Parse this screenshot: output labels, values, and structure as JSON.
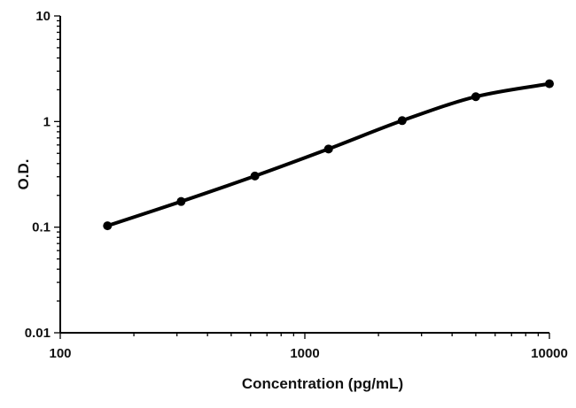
{
  "chart_data": {
    "type": "line",
    "title": "",
    "xlabel": "Concentration (pg/mL)",
    "ylabel": "O.D.",
    "x_scale": "log",
    "y_scale": "log",
    "xlim": [
      100,
      10000
    ],
    "ylim": [
      0.01,
      10
    ],
    "x_ticks": [
      {
        "value": 100,
        "label": "100"
      },
      {
        "value": 1000,
        "label": "1000"
      },
      {
        "value": 10000,
        "label": "10000"
      }
    ],
    "y_ticks": [
      {
        "value": 10,
        "label": "10"
      },
      {
        "value": 1,
        "label": "1"
      },
      {
        "value": 0.1,
        "label": "0.1"
      },
      {
        "value": 0.01,
        "label": "0.01"
      }
    ],
    "grid": false,
    "legend": "none",
    "series": [
      {
        "x": [
          156,
          312,
          625,
          1250,
          2500,
          5000,
          10000
        ],
        "y": [
          0.103,
          0.175,
          0.305,
          0.55,
          1.02,
          1.72,
          2.28
        ]
      }
    ],
    "colors": {
      "line": "#000000",
      "axis": "#000000"
    }
  }
}
